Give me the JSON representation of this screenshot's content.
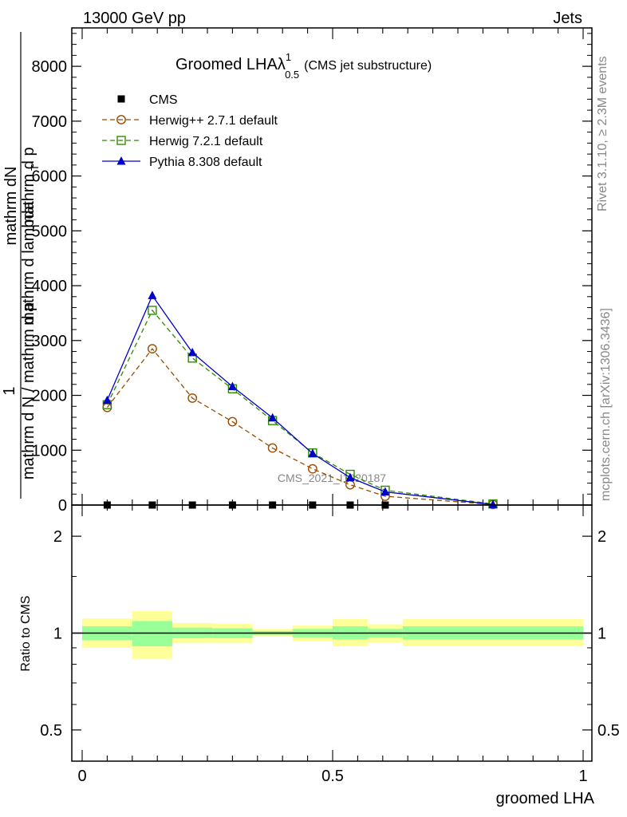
{
  "header": {
    "left": "13000 GeV pp",
    "right": "Jets"
  },
  "side_labels": {
    "rivet": "Rivet 3.1.10, ≥ 2.3M events",
    "mcplots": "mcplots.cern.ch [arXiv:1306.3436]"
  },
  "watermark": "CMS_2021_I1920187",
  "chart_data": [
    {
      "type": "line",
      "title_main": "Groomed LHAλ",
      "title_sup": "1",
      "title_sub": "0.5",
      "title_suffix": "(CMS jet substructure)",
      "ylabel_numerator": "mathrm dN",
      "ylabel_denominator": "mathrm d p",
      "ylabel_denominator_tail": "mathrm d lambda",
      "ylabel_sub": "T",
      "ylabel_left_numerator": "1",
      "ylabel_left_denominator": "mathrm d N / mathrm d p",
      "ylabel_left_tail": "mathrm d p",
      "ylim": [
        0,
        8700
      ],
      "yticks": [
        0,
        1000,
        2000,
        3000,
        4000,
        5000,
        6000,
        7000,
        8000
      ],
      "ytick_labels": [
        "0",
        "1000",
        "2000",
        "3000",
        "4000",
        "5000",
        "6000",
        "7000",
        "8000"
      ],
      "xlim": [
        -0.02,
        1.02
      ],
      "x": [
        0.05,
        0.14,
        0.22,
        0.3,
        0.38,
        0.46,
        0.535,
        0.605,
        0.82
      ],
      "series": [
        {
          "name": "CMS",
          "color": "#000000",
          "marker": "square-filled",
          "dash": "none",
          "values": [
            0,
            0,
            0,
            0,
            0,
            0,
            0,
            0,
            null
          ]
        },
        {
          "name": "Herwig++ 2.7.1 default",
          "color": "#9a4a00",
          "marker": "circle-open",
          "dash": "6,4",
          "values": [
            1780,
            2850,
            1950,
            1520,
            1040,
            660,
            370,
            160,
            10
          ]
        },
        {
          "name": "Herwig 7.2.1 default",
          "color": "#2e8b00",
          "marker": "square-open",
          "dash": "6,4",
          "values": [
            1830,
            3550,
            2680,
            2120,
            1540,
            950,
            560,
            270,
            20
          ]
        },
        {
          "name": "Pythia 8.308 default",
          "color": "#0000cc",
          "marker": "triangle-filled",
          "dash": "none",
          "values": [
            1910,
            3820,
            2780,
            2160,
            1590,
            940,
            500,
            240,
            10
          ]
        }
      ]
    },
    {
      "type": "area",
      "ylabel": "Ratio to CMS",
      "xlabel": "groomed LHA",
      "log_scale_y": true,
      "ylim": [
        0.4,
        2.5
      ],
      "yticks": [
        0.5,
        1,
        2
      ],
      "ytick_labels": [
        "0.5",
        "1",
        "2"
      ],
      "xticks": [
        0,
        0.5,
        1
      ],
      "xtick_labels": [
        "0",
        "0.5",
        "1"
      ],
      "bins": [
        {
          "x0": 0.0,
          "x1": 0.1,
          "inner": [
            0.95,
            1.05
          ],
          "outer": [
            0.9,
            1.11
          ]
        },
        {
          "x0": 0.1,
          "x1": 0.18,
          "inner": [
            0.91,
            1.09
          ],
          "outer": [
            0.83,
            1.17
          ]
        },
        {
          "x0": 0.18,
          "x1": 0.26,
          "inner": [
            0.965,
            1.04
          ],
          "outer": [
            0.93,
            1.075
          ]
        },
        {
          "x0": 0.26,
          "x1": 0.34,
          "inner": [
            0.965,
            1.035
          ],
          "outer": [
            0.93,
            1.07
          ]
        },
        {
          "x0": 0.34,
          "x1": 0.42,
          "inner": [
            0.985,
            1.015
          ],
          "outer": [
            0.975,
            1.03
          ]
        },
        {
          "x0": 0.42,
          "x1": 0.5,
          "inner": [
            0.97,
            1.03
          ],
          "outer": [
            0.945,
            1.055
          ]
        },
        {
          "x0": 0.5,
          "x1": 0.57,
          "inner": [
            0.955,
            1.05
          ],
          "outer": [
            0.91,
            1.105
          ]
        },
        {
          "x0": 0.57,
          "x1": 0.64,
          "inner": [
            0.97,
            1.03
          ],
          "outer": [
            0.935,
            1.065
          ]
        },
        {
          "x0": 0.64,
          "x1": 1.0,
          "inner": [
            0.955,
            1.05
          ],
          "outer": [
            0.91,
            1.105
          ]
        }
      ],
      "reference_line": 1
    }
  ],
  "colors": {
    "band_outer": "#ffff99",
    "band_inner": "#99ff99"
  }
}
